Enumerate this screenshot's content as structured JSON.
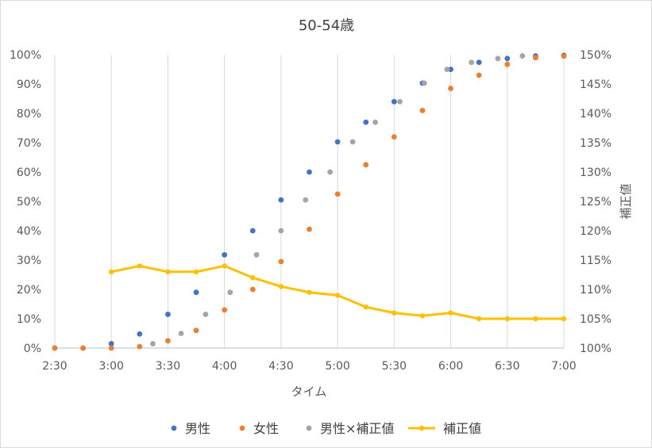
{
  "chart_data": {
    "type": "scatter",
    "title": "50-54歳",
    "xlabel": "タイム",
    "ylabel_right": "補正値",
    "x_ticks": [
      "2:30",
      "3:00",
      "3:30",
      "4:00",
      "4:30",
      "5:00",
      "5:30",
      "6:00",
      "6:30",
      "7:00"
    ],
    "xlim_minutes": [
      150,
      420
    ],
    "y_left": {
      "ticks": [
        "0%",
        "10%",
        "20%",
        "30%",
        "40%",
        "50%",
        "60%",
        "70%",
        "80%",
        "90%",
        "100%"
      ],
      "range": [
        0,
        100
      ]
    },
    "y_right": {
      "ticks": [
        "100%",
        "105%",
        "110%",
        "115%",
        "120%",
        "125%",
        "130%",
        "135%",
        "140%",
        "145%",
        "150%"
      ],
      "range": [
        100,
        150
      ]
    },
    "legend_position": "bottom",
    "grid": "vertical",
    "series": [
      {
        "name": "男性",
        "kind": "scatter",
        "axis": "left",
        "color": "#4472c4",
        "points": [
          [
            150,
            0
          ],
          [
            165,
            0
          ],
          [
            180,
            1.5
          ],
          [
            195,
            4.8
          ],
          [
            210,
            11.5
          ],
          [
            225,
            19
          ],
          [
            240,
            31.8
          ],
          [
            255,
            40
          ],
          [
            270,
            50.5
          ],
          [
            285,
            60
          ],
          [
            300,
            70.3
          ],
          [
            315,
            77
          ],
          [
            330,
            84
          ],
          [
            345,
            90.3
          ],
          [
            360,
            95
          ],
          [
            375,
            97.4
          ],
          [
            390,
            98.7
          ],
          [
            405,
            99.6
          ],
          [
            420,
            99.8
          ]
        ]
      },
      {
        "name": "女性",
        "kind": "scatter",
        "axis": "left",
        "color": "#ed7d31",
        "points": [
          [
            150,
            0
          ],
          [
            165,
            0
          ],
          [
            180,
            0
          ],
          [
            195,
            0.5
          ],
          [
            210,
            2.5
          ],
          [
            225,
            6
          ],
          [
            240,
            13
          ],
          [
            255,
            20
          ],
          [
            270,
            29.5
          ],
          [
            285,
            40.5
          ],
          [
            300,
            52.5
          ],
          [
            315,
            62.5
          ],
          [
            330,
            72
          ],
          [
            345,
            81
          ],
          [
            360,
            88.5
          ],
          [
            375,
            93
          ],
          [
            390,
            96.7
          ],
          [
            405,
            99
          ],
          [
            420,
            99.5
          ]
        ]
      },
      {
        "name": "男性×補正値",
        "kind": "scatter",
        "axis": "left",
        "color": "#a5a5a5",
        "points": [
          [
            202,
            1.5
          ],
          [
            217,
            5
          ],
          [
            230,
            11.5
          ],
          [
            243,
            19
          ],
          [
            257,
            31.8
          ],
          [
            270,
            40
          ],
          [
            283,
            50.5
          ],
          [
            296,
            60
          ],
          [
            308,
            70.3
          ],
          [
            320,
            77
          ],
          [
            333,
            84
          ],
          [
            346,
            90.3
          ],
          [
            358,
            95
          ],
          [
            371,
            97.4
          ],
          [
            385,
            98.7
          ],
          [
            398,
            99.6
          ]
        ]
      },
      {
        "name": "補正値",
        "kind": "line",
        "axis": "right",
        "color": "#ffc000",
        "points": [
          [
            180,
            113
          ],
          [
            195,
            114
          ],
          [
            210,
            113
          ],
          [
            225,
            113
          ],
          [
            240,
            114
          ],
          [
            255,
            112
          ],
          [
            270,
            110.5
          ],
          [
            285,
            109.5
          ],
          [
            300,
            109
          ],
          [
            315,
            107
          ],
          [
            330,
            106
          ],
          [
            345,
            105.5
          ],
          [
            360,
            106
          ],
          [
            375,
            105
          ],
          [
            390,
            105
          ],
          [
            405,
            105
          ],
          [
            420,
            105
          ]
        ]
      }
    ]
  }
}
